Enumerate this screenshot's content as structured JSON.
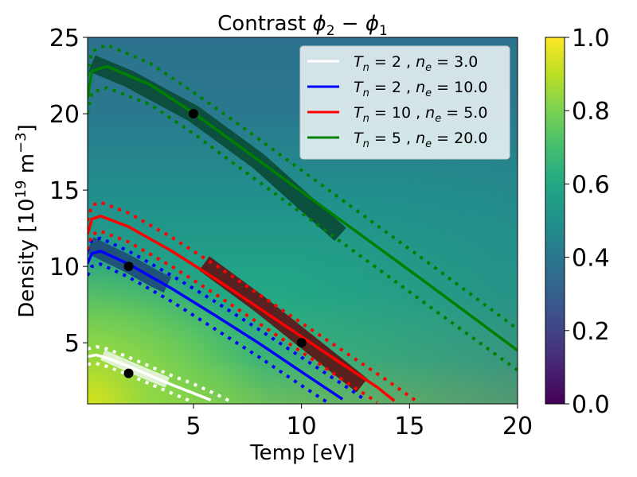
{
  "chart_data": {
    "type": "heatmap",
    "title": "Contrast φ₂ − φ₁",
    "xlabel": "Temp [eV]",
    "ylabel": "Density [10¹⁹ m⁻³]",
    "xlim": [
      0.1,
      20
    ],
    "ylim": [
      1,
      25
    ],
    "x_ticks": [
      5,
      10,
      15,
      20
    ],
    "y_ticks": [
      5,
      10,
      15,
      20,
      25
    ],
    "colorbar": {
      "min": 0.0,
      "max": 1.0,
      "ticks": [
        "0.0",
        "0.2",
        "0.4",
        "0.6",
        "0.8",
        "1.0"
      ],
      "colormap": "viridis"
    },
    "legend_location": "upper right",
    "series": [
      {
        "name": "T_n = 2 , n_e = 3.0",
        "label_parts": [
          "T",
          "n",
          " = 2 , ",
          "n",
          "e",
          " = 3.0"
        ],
        "color": "#ffffff",
        "point": [
          2,
          3
        ],
        "solid": [
          [
            0.1,
            4.1
          ],
          [
            0.5,
            4.2
          ],
          [
            1.0,
            4.0
          ],
          [
            2.0,
            3.45
          ],
          [
            3.0,
            2.85
          ],
          [
            4.0,
            2.25
          ],
          [
            5.0,
            1.7
          ],
          [
            5.8,
            1.25
          ]
        ],
        "dotted_upper": [
          [
            0.1,
            4.6
          ],
          [
            0.5,
            4.75
          ],
          [
            1.0,
            4.6
          ],
          [
            2.0,
            4.05
          ],
          [
            3.0,
            3.45
          ],
          [
            4.0,
            2.85
          ],
          [
            5.0,
            2.3
          ],
          [
            6.1,
            1.6
          ],
          [
            6.8,
            1.1
          ]
        ],
        "dotted_lower": [
          [
            0.1,
            3.6
          ],
          [
            0.5,
            3.65
          ],
          [
            1.0,
            3.45
          ],
          [
            2.0,
            2.9
          ],
          [
            3.0,
            2.3
          ],
          [
            4.0,
            1.7
          ],
          [
            5.0,
            1.1
          ]
        ],
        "shaded_band": [
          [
            0.8,
            4.2
          ],
          [
            2.0,
            3.45
          ],
          [
            3.0,
            2.85
          ],
          [
            3.8,
            2.4
          ]
        ]
      },
      {
        "name": "T_n = 2 , n_e = 10.0",
        "label_parts": [
          "T",
          "n",
          " = 2 , ",
          "n",
          "e",
          " = 10.0"
        ],
        "color": "#0000ff",
        "point": [
          2,
          10
        ],
        "solid": [
          [
            0.1,
            10.2
          ],
          [
            0.3,
            10.85
          ],
          [
            0.7,
            11.0
          ],
          [
            2,
            10.15
          ],
          [
            4,
            8.55
          ],
          [
            6,
            6.8
          ],
          [
            8,
            5.0
          ],
          [
            10,
            3.1
          ],
          [
            11.9,
            1.3
          ]
        ],
        "dotted_upper": [
          [
            0.1,
            11.0
          ],
          [
            0.3,
            11.7
          ],
          [
            0.7,
            11.85
          ],
          [
            2,
            11.0
          ],
          [
            4,
            9.4
          ],
          [
            6,
            7.7
          ],
          [
            8,
            5.9
          ],
          [
            10,
            4.05
          ],
          [
            12.3,
            1.9
          ],
          [
            13,
            1.2
          ]
        ],
        "dotted_lower": [
          [
            0.1,
            9.4
          ],
          [
            0.3,
            10.0
          ],
          [
            0.7,
            10.15
          ],
          [
            2,
            9.3
          ],
          [
            4,
            7.7
          ],
          [
            6,
            5.9
          ],
          [
            8,
            4.1
          ],
          [
            10,
            2.2
          ],
          [
            11.2,
            1.1
          ]
        ],
        "shaded_band": [
          [
            0.2,
            11.4
          ],
          [
            2,
            10.15
          ],
          [
            3.2,
            9.2
          ],
          [
            3.8,
            8.8
          ]
        ]
      },
      {
        "name": "T_n = 10 , n_e = 5.0",
        "label_parts": [
          "T",
          "n",
          " = 10 , ",
          "n",
          "e",
          " = 5.0"
        ],
        "color": "#ff0000",
        "point": [
          10,
          5
        ],
        "solid": [
          [
            0.1,
            12.1
          ],
          [
            0.3,
            13.1
          ],
          [
            0.7,
            13.3
          ],
          [
            2,
            12.6
          ],
          [
            4,
            11.0
          ],
          [
            6,
            9.2
          ],
          [
            8,
            7.3
          ],
          [
            10,
            5.4
          ],
          [
            12,
            3.5
          ],
          [
            13.5,
            2.1
          ],
          [
            14.3,
            1.2
          ]
        ],
        "dotted_upper": [
          [
            0.1,
            13.0
          ],
          [
            0.3,
            14.0
          ],
          [
            0.7,
            14.2
          ],
          [
            2,
            13.5
          ],
          [
            4,
            11.9
          ],
          [
            6,
            10.1
          ],
          [
            8,
            8.2
          ],
          [
            10,
            6.3
          ],
          [
            12,
            4.4
          ],
          [
            14,
            2.5
          ],
          [
            15.4,
            1.1
          ]
        ],
        "dotted_lower": [
          [
            0.1,
            11.1
          ],
          [
            0.3,
            12.1
          ],
          [
            0.7,
            12.3
          ],
          [
            2,
            11.6
          ],
          [
            4,
            10.0
          ],
          [
            6,
            8.2
          ],
          [
            8,
            6.3
          ],
          [
            10,
            4.4
          ],
          [
            12,
            2.5
          ],
          [
            13.5,
            1.1
          ]
        ],
        "shaded_band": [
          [
            5.5,
            10.2
          ],
          [
            8,
            7.6
          ],
          [
            10,
            5.35
          ],
          [
            12.8,
            2.2
          ]
        ]
      },
      {
        "name": "T_n = 5 , n_e = 20.0",
        "label_parts": [
          "T",
          "n",
          " = 5 , ",
          "n",
          "e",
          " = 20.0"
        ],
        "color": "#008000",
        "point": [
          5,
          20
        ],
        "solid": [
          [
            0.1,
            21.0
          ],
          [
            0.3,
            22.8
          ],
          [
            1.0,
            23.1
          ],
          [
            3,
            21.9
          ],
          [
            5,
            20.05
          ],
          [
            7,
            18.0
          ],
          [
            10,
            14.9
          ],
          [
            13,
            11.8
          ],
          [
            16,
            8.7
          ],
          [
            20,
            4.5
          ]
        ],
        "dotted_upper": [
          [
            0.1,
            22.5
          ],
          [
            0.3,
            24.1
          ],
          [
            1.0,
            24.5
          ],
          [
            3,
            23.3
          ],
          [
            5,
            21.4
          ],
          [
            7,
            19.4
          ],
          [
            10,
            16.3
          ],
          [
            13,
            13.2
          ],
          [
            16,
            10.1
          ],
          [
            20,
            5.9
          ]
        ],
        "dotted_lower": [
          [
            0.1,
            20.0
          ],
          [
            0.3,
            21.4
          ],
          [
            1.0,
            21.7
          ],
          [
            3,
            20.6
          ],
          [
            5,
            18.7
          ],
          [
            7,
            16.6
          ],
          [
            10,
            13.5
          ],
          [
            13,
            10.4
          ],
          [
            16,
            7.3
          ],
          [
            20,
            3.2
          ]
        ],
        "shaded_band": [
          [
            0.3,
            23.3
          ],
          [
            2,
            22.3
          ],
          [
            5,
            20.0
          ],
          [
            8,
            16.9
          ],
          [
            11.8,
            12.1
          ]
        ]
      }
    ]
  }
}
